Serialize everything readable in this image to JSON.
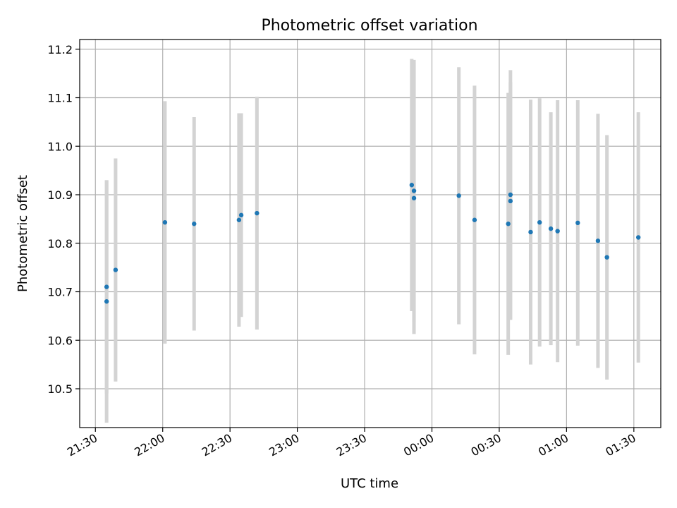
{
  "chart_data": {
    "type": "scatter",
    "title": "Photometric offset variation",
    "xlabel": "UTC time",
    "ylabel": "Photometric offset",
    "x_is_time": true,
    "xlim": [
      "21:23",
      "01:42"
    ],
    "ylim": [
      10.42,
      11.22
    ],
    "x_ticks": [
      "21:30",
      "22:00",
      "22:30",
      "23:00",
      "23:30",
      "00:00",
      "00:30",
      "01:00",
      "01:30"
    ],
    "y_ticks": [
      "10.5",
      "10.6",
      "10.7",
      "10.8",
      "10.9",
      "11.0",
      "11.1",
      "11.2"
    ],
    "grid": true,
    "point_color": "#1f77b4",
    "errorbar_color": "#d3d3d3",
    "points": [
      {
        "t": "21:35",
        "y": 10.71,
        "err": 0.22
      },
      {
        "t": "21:35",
        "y": 10.68,
        "err": 0.25
      },
      {
        "t": "21:39",
        "y": 10.745,
        "err": 0.23
      },
      {
        "t": "22:01",
        "y": 10.843,
        "err": 0.25
      },
      {
        "t": "22:14",
        "y": 10.84,
        "err": 0.22
      },
      {
        "t": "22:34",
        "y": 10.848,
        "err": 0.22
      },
      {
        "t": "22:35",
        "y": 10.858,
        "err": 0.21
      },
      {
        "t": "22:42",
        "y": 10.862,
        "err": 0.24
      },
      {
        "t": "23:51",
        "y": 10.92,
        "err": 0.26
      },
      {
        "t": "23:52",
        "y": 10.908,
        "err": 0.27
      },
      {
        "t": "23:52",
        "y": 10.893,
        "err": 0.28
      },
      {
        "t": "00:12",
        "y": 10.898,
        "err": 0.265
      },
      {
        "t": "00:19",
        "y": 10.848,
        "err": 0.277
      },
      {
        "t": "00:34",
        "y": 10.84,
        "err": 0.27
      },
      {
        "t": "00:35",
        "y": 10.887,
        "err": 0.245
      },
      {
        "t": "00:35",
        "y": 10.9,
        "err": 0.257
      },
      {
        "t": "00:44",
        "y": 10.823,
        "err": 0.273
      },
      {
        "t": "00:48",
        "y": 10.843,
        "err": 0.256
      },
      {
        "t": "00:53",
        "y": 10.83,
        "err": 0.24
      },
      {
        "t": "00:56",
        "y": 10.825,
        "err": 0.27
      },
      {
        "t": "01:05",
        "y": 10.842,
        "err": 0.253
      },
      {
        "t": "01:14",
        "y": 10.805,
        "err": 0.262
      },
      {
        "t": "01:18",
        "y": 10.771,
        "err": 0.252
      },
      {
        "t": "01:32",
        "y": 10.812,
        "err": 0.258
      }
    ]
  }
}
